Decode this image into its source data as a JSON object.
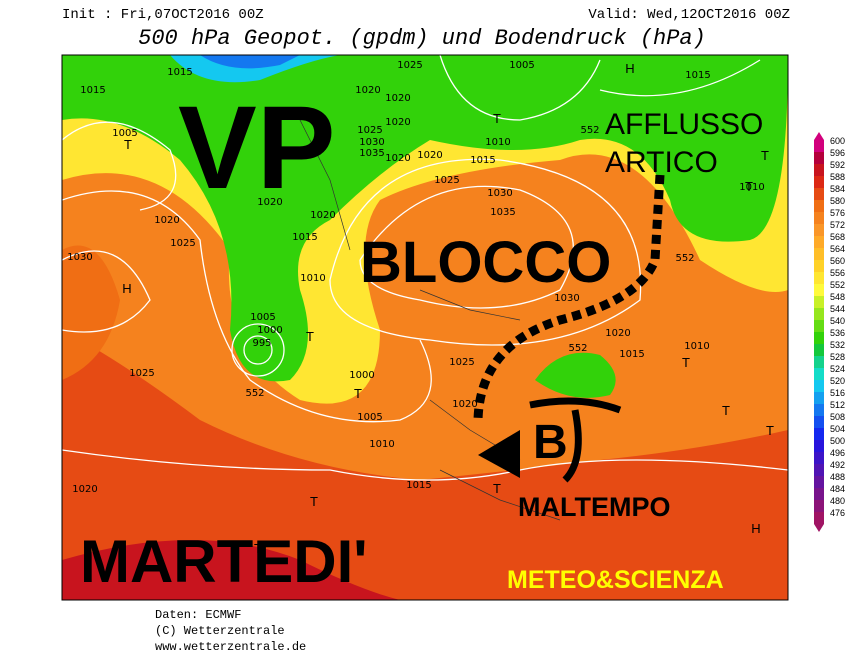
{
  "header": {
    "init": "Init : Fri,07OCT2016 00Z",
    "valid": "Valid: Wed,12OCT2016 00Z",
    "title": "500 hPa Geopot. (gpdm) und Bodendruck (hPa)"
  },
  "annotations": {
    "vp": "VP",
    "afflusso": "AFFLUSSO",
    "artico": "ARTICO",
    "blocco": "BLOCCO",
    "low": "B",
    "maltempo": "MALTEMPO",
    "martedi": "MARTEDI'",
    "brand": "METEO&SCIENZA"
  },
  "pressure_labels": [
    "1015",
    "1015",
    "1005",
    "1025",
    "1005",
    "1020",
    "1020",
    "1020",
    "1025",
    "1030",
    "1035",
    "1020",
    "1020",
    "1015",
    "1010",
    "1025",
    "1030",
    "1035",
    "1020",
    "1020",
    "1015",
    "1010",
    "1020",
    "1025",
    "1030",
    "1005",
    "1000",
    "995",
    "1025",
    "1000",
    "1005",
    "1010",
    "1015",
    "1020",
    "1025",
    "1020",
    "1030",
    "1020",
    "1015",
    "1010",
    "1010",
    "1015",
    "552",
    "552",
    "552",
    "552"
  ],
  "centers": [
    "H",
    "T",
    "T",
    "T",
    "T",
    "H",
    "T",
    "T",
    "T",
    "T",
    "T",
    "T",
    "T",
    "T",
    "H"
  ],
  "colorbar": {
    "levels": [
      600,
      596,
      592,
      588,
      584,
      580,
      576,
      572,
      568,
      564,
      560,
      556,
      552,
      548,
      544,
      540,
      536,
      532,
      528,
      524,
      520,
      516,
      512,
      508,
      504,
      500,
      496,
      492,
      488,
      484,
      480,
      476
    ],
    "colors": [
      "#d2007d",
      "#b4003c",
      "#c8141e",
      "#dc2814",
      "#e64b14",
      "#f06e14",
      "#f5821e",
      "#fa9628",
      "#ffaa28",
      "#ffbe28",
      "#ffd228",
      "#ffe632",
      "#fffa3c",
      "#c8f028",
      "#96e61e",
      "#64dc14",
      "#32d20a",
      "#14c83c",
      "#14d28c",
      "#14dcc8",
      "#14c8f0",
      "#14a0f0",
      "#1478f0",
      "#1450f0",
      "#1428f0",
      "#2814dc",
      "#3c14c8",
      "#5014b4",
      "#6414a0",
      "#78148c",
      "#8c1478",
      "#a01464"
    ]
  },
  "footer": {
    "data": "Daten: ECMWF",
    "copyright": "(C) Wetterzentrale",
    "url": "www.wetterzentrale.de"
  }
}
